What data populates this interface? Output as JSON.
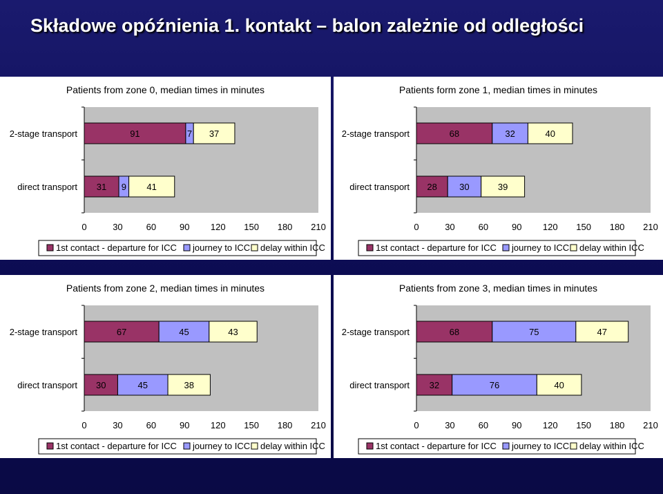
{
  "slide": {
    "title": "Składowe opóźnienia 1. kontakt – balon zależnie od odległości"
  },
  "colors": {
    "first_contact": "#993366",
    "journey": "#9999ff",
    "delay": "#ffffcc",
    "plot_area": "#c0c0c0"
  },
  "chart_data": [
    {
      "type": "bar",
      "orientation": "horizontal",
      "stacked": true,
      "title": "Patients from zone 0, median times in minutes",
      "categories": [
        "2-stage transport",
        "direct transport"
      ],
      "series": [
        {
          "name": "1st contact - departure for ICC",
          "values": [
            91,
            31
          ]
        },
        {
          "name": "journey to ICC",
          "values": [
            7,
            9
          ]
        },
        {
          "name": "delay within ICC",
          "values": [
            37,
            41
          ]
        }
      ],
      "xlim": [
        0,
        210
      ],
      "xticks": [
        0,
        30,
        60,
        90,
        120,
        150,
        180,
        210
      ],
      "legend": "bottom"
    },
    {
      "type": "bar",
      "orientation": "horizontal",
      "stacked": true,
      "title": "Patients form zone 1, median times in minutes",
      "categories": [
        "2-stage transport",
        "direct transport"
      ],
      "series": [
        {
          "name": "1st contact - departure for ICC",
          "values": [
            68,
            28
          ]
        },
        {
          "name": "journey to ICC",
          "values": [
            32,
            30
          ]
        },
        {
          "name": "delay within ICC",
          "values": [
            40,
            39
          ]
        }
      ],
      "xlim": [
        0,
        210
      ],
      "xticks": [
        0,
        30,
        60,
        90,
        120,
        150,
        180,
        210
      ],
      "legend": "bottom"
    },
    {
      "type": "bar",
      "orientation": "horizontal",
      "stacked": true,
      "title": "Patients from zone 2, median times in minutes",
      "categories": [
        "2-stage transport",
        "direct transport"
      ],
      "series": [
        {
          "name": "1st contact - departure for ICC",
          "values": [
            67,
            30
          ]
        },
        {
          "name": "journey to ICC",
          "values": [
            45,
            45
          ]
        },
        {
          "name": "delay within ICC",
          "values": [
            43,
            38
          ]
        }
      ],
      "xlim": [
        0,
        210
      ],
      "xticks": [
        0,
        30,
        60,
        90,
        120,
        150,
        180,
        210
      ],
      "legend": "bottom"
    },
    {
      "type": "bar",
      "orientation": "horizontal",
      "stacked": true,
      "title": "Patients from zone 3, median times in minutes",
      "categories": [
        "2-stage transport",
        "direct transport"
      ],
      "series": [
        {
          "name": "1st contact - departure for ICC",
          "values": [
            68,
            32
          ]
        },
        {
          "name": "journey to ICC",
          "values": [
            75,
            76
          ]
        },
        {
          "name": "delay within ICC",
          "values": [
            47,
            40
          ]
        }
      ],
      "xlim": [
        0,
        210
      ],
      "xticks": [
        0,
        30,
        60,
        90,
        120,
        150,
        180,
        210
      ],
      "legend": "bottom"
    }
  ]
}
